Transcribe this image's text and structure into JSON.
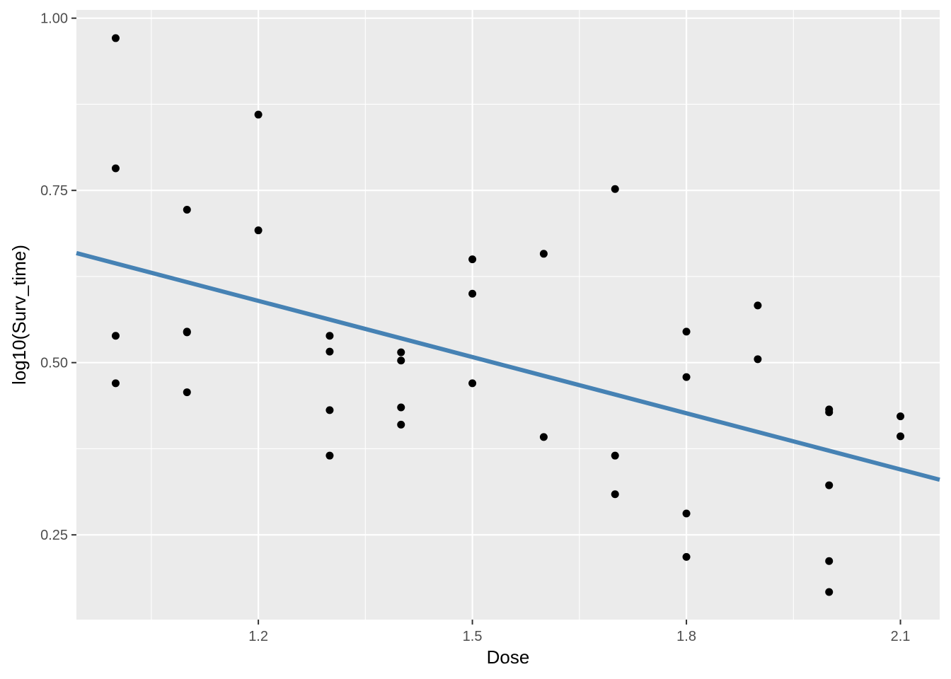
{
  "chart_data": {
    "type": "scatter",
    "title": "",
    "xlabel": "Dose",
    "ylabel": "log10(Surv_time)",
    "xlim": [
      0.945,
      2.155
    ],
    "ylim": [
      0.127,
      1.012
    ],
    "x_ticks": [
      1.2,
      1.5,
      1.8,
      2.1
    ],
    "x_tick_labels": [
      "1.2",
      "1.5",
      "1.8",
      "2.1"
    ],
    "x_minor_ticks": [
      1.05,
      1.35,
      1.65,
      1.95
    ],
    "y_ticks": [
      0.25,
      0.5,
      0.75,
      1.0
    ],
    "y_tick_labels": [
      "0.25",
      "0.50",
      "0.75",
      "1.00"
    ],
    "y_minor_ticks": [
      0.375,
      0.625,
      0.875
    ],
    "grid": true,
    "background": "#ebebeb",
    "grid_color": "#ffffff",
    "point_color": "#000000",
    "line_color": "#4682b4",
    "points": [
      {
        "x": 1.0,
        "y": 0.971
      },
      {
        "x": 1.0,
        "y": 0.782
      },
      {
        "x": 1.0,
        "y": 0.539
      },
      {
        "x": 1.0,
        "y": 0.47
      },
      {
        "x": 1.1,
        "y": 0.722
      },
      {
        "x": 1.1,
        "y": 0.545
      },
      {
        "x": 1.1,
        "y": 0.544
      },
      {
        "x": 1.1,
        "y": 0.457
      },
      {
        "x": 1.2,
        "y": 0.86
      },
      {
        "x": 1.2,
        "y": 0.692
      },
      {
        "x": 1.3,
        "y": 0.539
      },
      {
        "x": 1.3,
        "y": 0.516
      },
      {
        "x": 1.3,
        "y": 0.431
      },
      {
        "x": 1.3,
        "y": 0.365
      },
      {
        "x": 1.4,
        "y": 0.515
      },
      {
        "x": 1.4,
        "y": 0.503
      },
      {
        "x": 1.4,
        "y": 0.435
      },
      {
        "x": 1.4,
        "y": 0.41
      },
      {
        "x": 1.5,
        "y": 0.65
      },
      {
        "x": 1.5,
        "y": 0.6
      },
      {
        "x": 1.5,
        "y": 0.47
      },
      {
        "x": 1.6,
        "y": 0.658
      },
      {
        "x": 1.6,
        "y": 0.392
      },
      {
        "x": 1.7,
        "y": 0.752
      },
      {
        "x": 1.7,
        "y": 0.365
      },
      {
        "x": 1.7,
        "y": 0.309
      },
      {
        "x": 1.8,
        "y": 0.545
      },
      {
        "x": 1.8,
        "y": 0.479
      },
      {
        "x": 1.8,
        "y": 0.281
      },
      {
        "x": 1.8,
        "y": 0.218
      },
      {
        "x": 1.9,
        "y": 0.583
      },
      {
        "x": 1.9,
        "y": 0.505
      },
      {
        "x": 2.0,
        "y": 0.432
      },
      {
        "x": 2.0,
        "y": 0.428
      },
      {
        "x": 2.0,
        "y": 0.322
      },
      {
        "x": 2.0,
        "y": 0.212
      },
      {
        "x": 2.0,
        "y": 0.167
      },
      {
        "x": 2.1,
        "y": 0.422
      },
      {
        "x": 2.1,
        "y": 0.393
      }
    ],
    "fit_line": {
      "x": [
        0.945,
        2.155
      ],
      "y": [
        0.659,
        0.33
      ]
    }
  }
}
